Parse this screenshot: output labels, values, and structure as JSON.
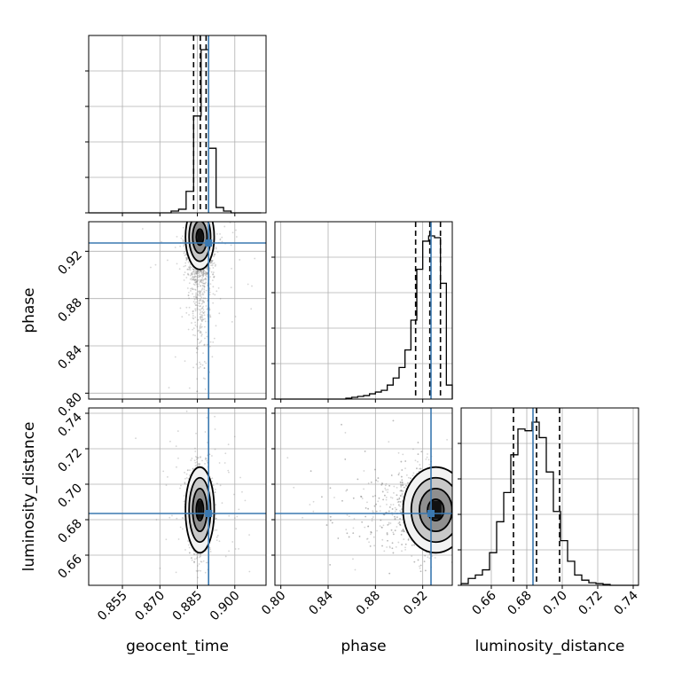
{
  "chart_data": {
    "type": "corner",
    "parameters": [
      "geocent_time",
      "phase",
      "luminosity_distance"
    ],
    "axis_labels": {
      "geocent_time": "geocent_time",
      "phase": "phase",
      "luminosity_distance": "luminosity_distance"
    },
    "ranges": {
      "geocent_time": [
        0.8415,
        0.9125
      ],
      "phase": [
        0.795,
        0.945
      ],
      "luminosity_distance": [
        0.643,
        0.743
      ]
    },
    "ticks": {
      "geocent_time": [
        0.855,
        0.87,
        0.885,
        0.9
      ],
      "phase": [
        0.8,
        0.84,
        0.88,
        0.92
      ],
      "luminosity_distance": [
        0.66,
        0.68,
        0.7,
        0.72,
        0.74
      ]
    },
    "tick_labels": {
      "geocent_time": [
        "0.855",
        "0.870",
        "0.885",
        "0.900"
      ],
      "phase": [
        "0.80",
        "0.84",
        "0.88",
        "0.92"
      ],
      "luminosity_distance": [
        "0.66",
        "0.68",
        "0.70",
        "0.72",
        "0.74"
      ]
    },
    "injection_values": {
      "geocent_time": 0.8895,
      "phase": 0.927,
      "luminosity_distance": 0.6835
    },
    "quantiles": {
      "geocent_time": [
        0.8835,
        0.8862,
        0.8885
      ],
      "phase": [
        0.914,
        0.926,
        0.935
      ],
      "luminosity_distance": [
        0.6725,
        0.6855,
        0.6985
      ]
    },
    "histograms": {
      "geocent_time": {
        "bin_edges": [
          0.8415,
          0.8445,
          0.8475,
          0.8505,
          0.8535,
          0.8565,
          0.8595,
          0.8625,
          0.8655,
          0.8685,
          0.8715,
          0.8745,
          0.8775,
          0.8805,
          0.8835,
          0.8865,
          0.8895,
          0.8925,
          0.8955,
          0.8985,
          0.9015,
          0.9045,
          0.9075,
          0.9105
        ],
        "counts": [
          0,
          0,
          0,
          0,
          0,
          0,
          0,
          0,
          0,
          0,
          0,
          0.01,
          0.02,
          0.12,
          0.54,
          0.91,
          0.36,
          0.03,
          0.01,
          0,
          0,
          0,
          0
        ]
      },
      "phase": {
        "bin_edges": [
          0.795,
          0.8,
          0.805,
          0.81,
          0.815,
          0.82,
          0.825,
          0.83,
          0.835,
          0.84,
          0.845,
          0.85,
          0.855,
          0.86,
          0.865,
          0.87,
          0.875,
          0.88,
          0.885,
          0.89,
          0.895,
          0.9,
          0.905,
          0.91,
          0.915,
          0.92,
          0.925,
          0.93,
          0.935,
          0.94,
          0.945
        ],
        "counts": [
          0,
          0,
          0,
          0,
          0,
          0,
          0,
          0,
          0,
          0,
          0,
          0,
          0.005,
          0.01,
          0.015,
          0.02,
          0.03,
          0.04,
          0.05,
          0.08,
          0.12,
          0.18,
          0.28,
          0.45,
          0.74,
          0.9,
          0.93,
          0.92,
          0.66,
          0.08
        ]
      },
      "luminosity_distance": {
        "bin_edges": [
          0.643,
          0.647,
          0.651,
          0.655,
          0.659,
          0.663,
          0.667,
          0.671,
          0.675,
          0.679,
          0.683,
          0.687,
          0.691,
          0.695,
          0.699,
          0.703,
          0.707,
          0.711,
          0.715,
          0.719,
          0.723,
          0.727,
          0.731,
          0.735,
          0.739,
          0.743
        ],
        "counts": [
          0.01,
          0.04,
          0.06,
          0.09,
          0.19,
          0.37,
          0.54,
          0.76,
          0.91,
          0.9,
          0.95,
          0.86,
          0.66,
          0.43,
          0.26,
          0.14,
          0.06,
          0.03,
          0.015,
          0.01,
          0.005,
          0,
          0,
          0,
          0
        ]
      }
    },
    "pair_posteriors": [
      {
        "x": "geocent_time",
        "y": "phase",
        "mode": [
          0.886,
          0.932
        ],
        "sd": [
          0.0025,
          0.013
        ]
      },
      {
        "x": "geocent_time",
        "y": "luminosity_distance",
        "mode": [
          0.886,
          0.6855
        ],
        "sd": [
          0.0025,
          0.0115
        ]
      },
      {
        "x": "phase",
        "y": "luminosity_distance",
        "mode": [
          0.931,
          0.6855
        ],
        "sd": [
          0.012,
          0.0115
        ]
      }
    ],
    "contour_levels": [
      0.5,
      1.0,
      1.5,
      2.0
    ],
    "grid": true,
    "colors": {
      "truth": "#3a78b0",
      "histogram": "#000000",
      "contour": "#000000",
      "scatter": "#888888"
    }
  }
}
